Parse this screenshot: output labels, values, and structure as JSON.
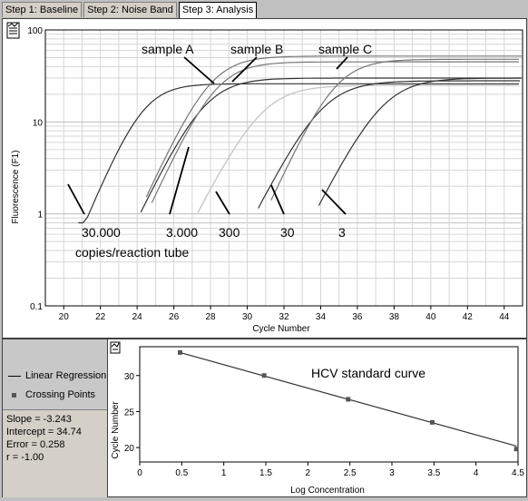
{
  "tabs": [
    {
      "label": "Step 1: Baseline",
      "active": false
    },
    {
      "label": "Step 2: Noise Band",
      "active": false
    },
    {
      "label": "Step 3: Analysis",
      "active": true
    }
  ],
  "amplification_chart": {
    "type": "line",
    "xlabel": "Cycle Number",
    "ylabel": "Fluorescence (F1)",
    "log_y": true,
    "xlim": [
      19,
      45
    ],
    "ylim": [
      0.1,
      100
    ],
    "x_ticks": [
      "20",
      "22",
      "24",
      "26",
      "28",
      "30",
      "32",
      "34",
      "36",
      "38",
      "40",
      "42",
      "44"
    ],
    "y_ticks": [
      "100",
      "10",
      "1",
      "0.1"
    ],
    "threshold": 0.8,
    "annotations": {
      "sample_a": "sample A",
      "sample_b": "sample B",
      "sample_c": "sample C",
      "std_30000": "30.000",
      "std_30000_sub": "copies/reaction tube",
      "std_3000": "3.000",
      "std_300": "300",
      "std_30": "30",
      "std_3": "3"
    },
    "series": [
      {
        "name": "30.000",
        "ct": 21.0,
        "plateau": 26,
        "k": 1.1
      },
      {
        "name": "3.000",
        "ct": 24.4,
        "plateau": 30,
        "k": 0.95
      },
      {
        "name": "300",
        "ct": 27.5,
        "plateau": 25,
        "k": 0.9
      },
      {
        "name": "30",
        "ct": 30.8,
        "plateau": 28,
        "k": 0.9
      },
      {
        "name": "3",
        "ct": 34.1,
        "plateau": 30,
        "k": 0.9
      },
      {
        "name": "sample A",
        "ct": 24.7,
        "plateau": 52,
        "k": 1.0
      },
      {
        "name": "sample B",
        "ct": 25.0,
        "plateau": 45,
        "k": 1.0
      },
      {
        "name": "sample C",
        "ct": 31.5,
        "plateau": 48,
        "k": 1.0
      }
    ]
  },
  "standard_curve": {
    "type": "scatter",
    "title": "HCV standard curve",
    "xlabel": "Log Concentration",
    "ylabel": "Cycle Number",
    "xlim": [
      0,
      4.5
    ],
    "ylim": [
      18,
      34
    ],
    "x_ticks": [
      "0",
      "0.5",
      "1",
      "1.5",
      "2",
      "2.5",
      "3",
      "3.5",
      "4",
      "4.5"
    ],
    "y_ticks": [
      "20",
      "25",
      "30"
    ],
    "points": [
      [
        0.48,
        33.2
      ],
      [
        1.48,
        30.0
      ],
      [
        2.48,
        26.7
      ],
      [
        3.48,
        23.5
      ],
      [
        4.48,
        19.8
      ]
    ],
    "slope": -3.243,
    "intercept": 34.74
  },
  "legend": {
    "linear_regression": "Linear Regression",
    "crossing_points": "Crossing Points"
  },
  "stats": {
    "slope": "Slope = -3.243",
    "intercept": "Intercept = 34.74",
    "error": "Error = 0.258",
    "r": "r = -1.00"
  }
}
